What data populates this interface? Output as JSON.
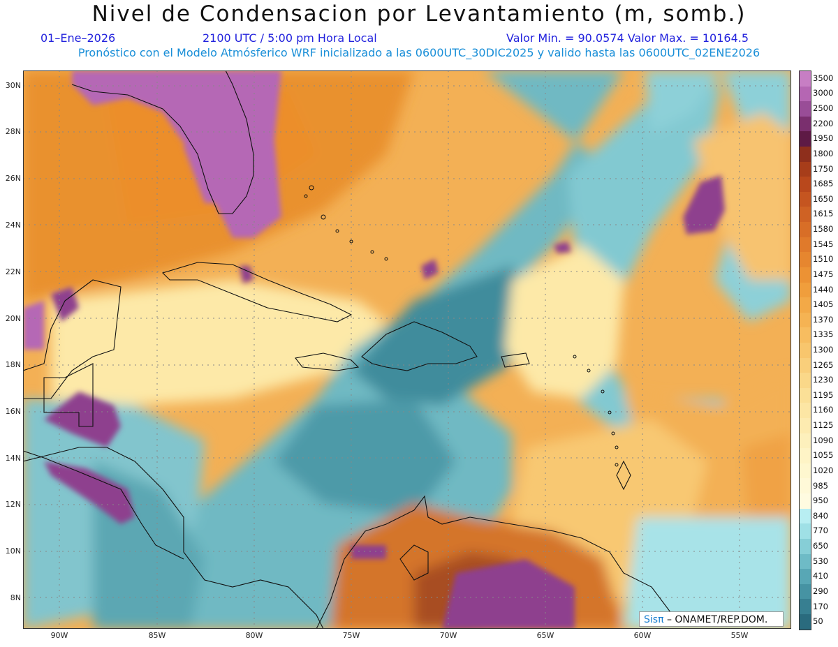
{
  "header": {
    "title": "Nivel de Condensacion por Levantamiento (m, somb.)",
    "date": "01–Ene–2026",
    "time": "2100 UTC / 5:00 pm Hora Local",
    "minmax": "Valor Min. = 90.0574   Valor Max. = 10164.5",
    "model_line": "Pronóstico con el Modelo Atmósferico WRF inicializado a las 0600UTC_30DIC2025 y valido hasta las  0600UTC_02ENE2026"
  },
  "axes": {
    "lat_labels": [
      "30N",
      "28N",
      "26N",
      "24N",
      "22N",
      "20N",
      "18N",
      "16N",
      "14N",
      "12N",
      "10N",
      "8N"
    ],
    "lon_labels": [
      "90W",
      "85W",
      "80W",
      "75W",
      "70W",
      "65W",
      "60W",
      "55W"
    ]
  },
  "colorbar": {
    "labels": [
      "3500",
      "3000",
      "2500",
      "2200",
      "1950",
      "1800",
      "1750",
      "1685",
      "1650",
      "1615",
      "1580",
      "1545",
      "1510",
      "1475",
      "1440",
      "1405",
      "1370",
      "1335",
      "1300",
      "1265",
      "1230",
      "1195",
      "1160",
      "1125",
      "1090",
      "1055",
      "1020",
      "985",
      "950",
      "840",
      "770",
      "650",
      "530",
      "410",
      "290",
      "170",
      "50"
    ],
    "colors": [
      "#c77ec4",
      "#b566b3",
      "#994d97",
      "#7a2f6e",
      "#5e1a45",
      "#8e2f1c",
      "#a73d1a",
      "#b9481c",
      "#c55520",
      "#cf6224",
      "#d86e27",
      "#e07a2b",
      "#e6862f",
      "#ec9234",
      "#f09e3c",
      "#f3a947",
      "#f5b353",
      "#f7bd60",
      "#f8c66d",
      "#f9cf7b",
      "#fad889",
      "#fbe097",
      "#fce6a4",
      "#fdebb0",
      "#fdf0bc",
      "#fef4c6",
      "#fef7cf",
      "#fff9d8",
      "#fffbe0",
      "#b8eef2",
      "#9fe0e6",
      "#86ced6",
      "#6ebbc6",
      "#58a7b5",
      "#4693a3",
      "#377f91",
      "#2a6b7e"
    ]
  },
  "branding": {
    "logo": "Sisπ",
    "credit": " – ONAMET/REP.DOM."
  }
}
